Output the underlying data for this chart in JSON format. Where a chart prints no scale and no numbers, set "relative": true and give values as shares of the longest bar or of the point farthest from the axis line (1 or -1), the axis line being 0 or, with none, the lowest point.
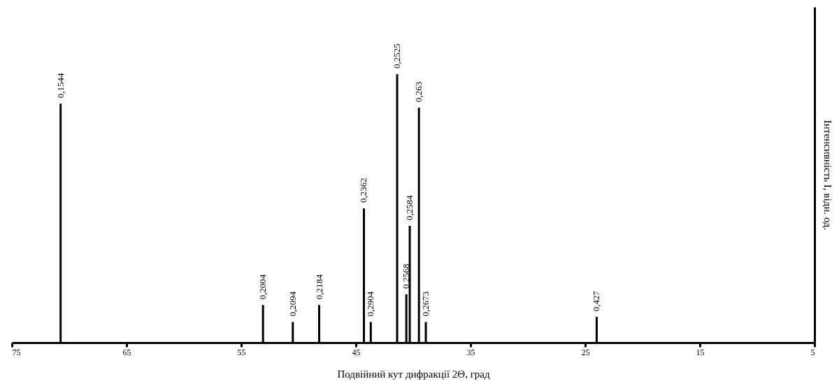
{
  "chart_data": {
    "type": "bar",
    "relative": true,
    "xlabel": "Подвійний кут дифракції 2Θ, град",
    "ylabel": "Інтенсивність I, відн. од.",
    "x": [
      70.75,
      53.1,
      50.5,
      48.2,
      44.3,
      43.7,
      41.4,
      40.6,
      40.3,
      39.5,
      38.9,
      24.0
    ],
    "values": [
      0.89,
      0.14,
      0.077,
      0.14,
      0.5,
      0.077,
      1,
      0.18,
      0.435,
      0.875,
      0.077,
      0.096
    ],
    "annotations": [
      {
        "text": "0,1544",
        "x": 70.75,
        "y": 0.89
      },
      {
        "text": "0,2004",
        "x": 53.1,
        "y": 0.14
      },
      {
        "text": "0,2094",
        "x": 50.5,
        "y": 0.077
      },
      {
        "text": "0,2184",
        "x": 48.2,
        "y": 0.14
      },
      {
        "text": "0,2362",
        "x": 44.3,
        "y": 0.5
      },
      {
        "text": "0,2904",
        "x": 43.7,
        "y": 0.077
      },
      {
        "text": "0,2525",
        "x": 41.4,
        "y": 1
      },
      {
        "text": "0,2568",
        "x": 40.6,
        "y": 0.18
      },
      {
        "text": "0,2584",
        "x": 40.3,
        "y": 0.435
      },
      {
        "text": "0,263",
        "x": 39.5,
        "y": 0.875
      },
      {
        "text": "0,2673",
        "x": 38.9,
        "y": 0.077
      },
      {
        "text": "0,427",
        "x": 24.0,
        "y": 0.096
      }
    ],
    "color": "#000000",
    "xlim": [
      75,
      5
    ],
    "xticks": [
      75,
      65,
      55,
      45,
      35,
      25,
      15,
      5
    ],
    "grid": false
  }
}
